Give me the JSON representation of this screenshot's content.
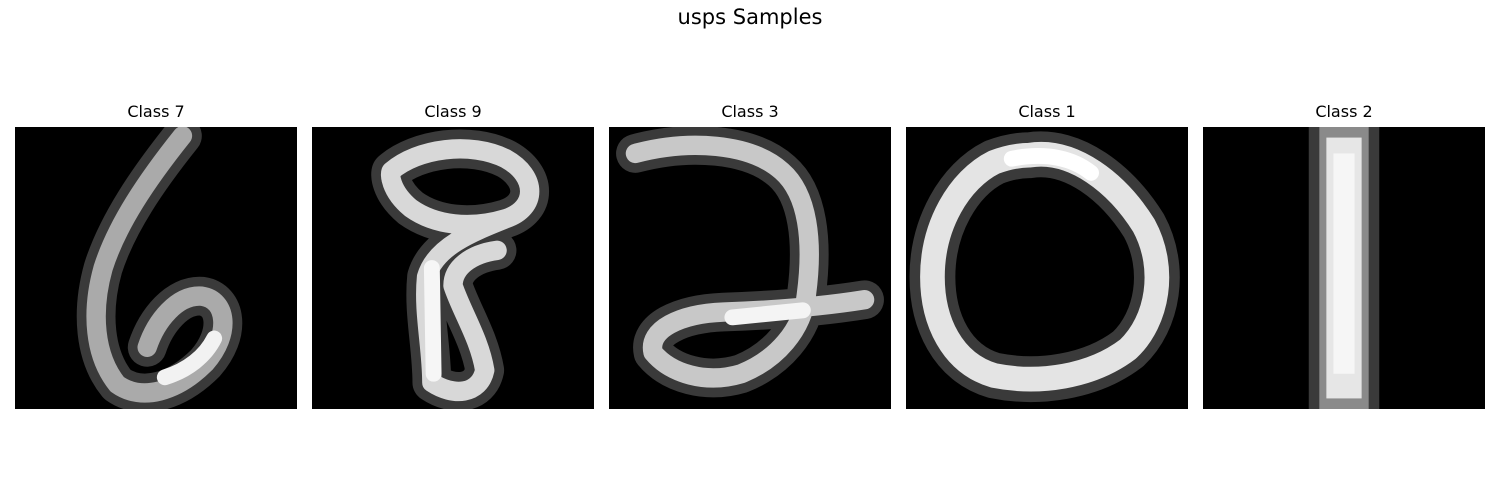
{
  "figure": {
    "title": "usps Samples"
  },
  "samples": [
    {
      "label": "Class 7"
    },
    {
      "label": "Class 9"
    },
    {
      "label": "Class 3"
    },
    {
      "label": "Class 1"
    },
    {
      "label": "Class 2"
    }
  ]
}
